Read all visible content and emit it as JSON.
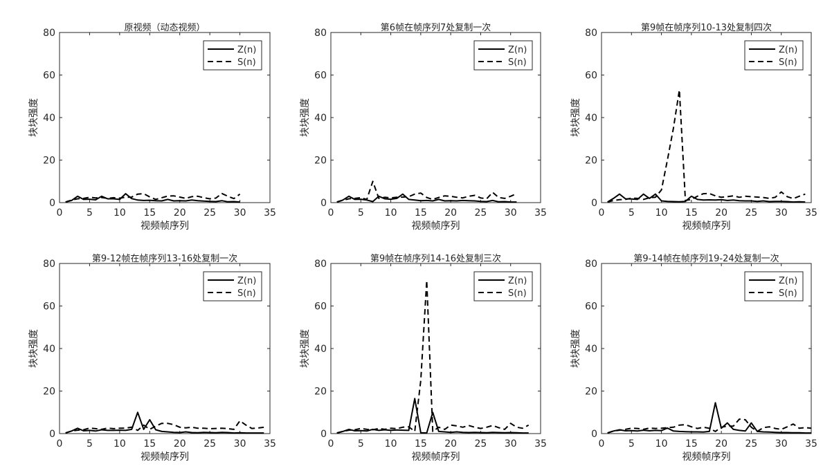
{
  "chart_data": [
    {
      "type": "line",
      "title": "原视频（动态视频）",
      "xlabel": "视频帧序列",
      "ylabel": "块块强度",
      "xlim": [
        0,
        35
      ],
      "ylim": [
        0,
        80
      ],
      "xticks": [
        0,
        5,
        10,
        15,
        20,
        25,
        30,
        35
      ],
      "yticks": [
        0,
        20,
        40,
        60,
        80
      ],
      "legend_position": "top-right",
      "series": [
        {
          "name": "Z(n)",
          "style": "solid",
          "x": [
            1,
            2,
            3,
            4,
            5,
            6,
            7,
            8,
            9,
            10,
            11,
            12,
            13,
            14,
            15,
            16,
            17,
            18,
            19,
            20,
            21,
            22,
            23,
            24,
            25,
            26,
            27,
            28,
            29,
            30
          ],
          "values": [
            0.3,
            1.0,
            3.0,
            1.5,
            1.6,
            1.3,
            3.0,
            1.8,
            1.8,
            1.5,
            4.2,
            1.9,
            1.2,
            1.0,
            1.1,
            0.9,
            0.8,
            1.5,
            0.8,
            0.9,
            0.8,
            1.2,
            0.9,
            0.7,
            0.6,
            0.5,
            0.9,
            0.4,
            0.5,
            0.3
          ]
        },
        {
          "name": "S(n)",
          "style": "dashed",
          "x": [
            1,
            2,
            3,
            4,
            5,
            6,
            7,
            8,
            9,
            10,
            11,
            12,
            13,
            14,
            15,
            16,
            17,
            18,
            19,
            20,
            21,
            22,
            23,
            24,
            25,
            26,
            27,
            28,
            29,
            30
          ],
          "values": [
            0.3,
            1.2,
            1.8,
            2.0,
            2.5,
            2.2,
            2.4,
            2.0,
            2.3,
            2.1,
            2.5,
            2.6,
            4.0,
            4.2,
            2.7,
            1.5,
            2.3,
            3.1,
            3.2,
            2.6,
            2.0,
            2.8,
            3.0,
            2.3,
            1.8,
            2.1,
            4.3,
            3.0,
            1.9,
            4.0
          ]
        }
      ]
    },
    {
      "type": "line",
      "title": "第6帧在帧序列7处复制一次",
      "xlabel": "视频帧序列",
      "ylabel": "块块强度",
      "xlim": [
        0,
        35
      ],
      "ylim": [
        0,
        80
      ],
      "xticks": [
        0,
        5,
        10,
        15,
        20,
        25,
        30,
        35
      ],
      "yticks": [
        0,
        20,
        40,
        60,
        80
      ],
      "legend_position": "top-right",
      "series": [
        {
          "name": "Z(n)",
          "style": "solid",
          "x": [
            1,
            2,
            3,
            4,
            5,
            6,
            7,
            8,
            9,
            10,
            11,
            12,
            13,
            14,
            15,
            16,
            17,
            18,
            19,
            20,
            21,
            22,
            23,
            24,
            25,
            26,
            27,
            28,
            29,
            30,
            31
          ],
          "values": [
            0.3,
            1.2,
            3.0,
            1.5,
            1.6,
            1.2,
            0.5,
            3.0,
            1.8,
            1.6,
            2.0,
            4.0,
            1.5,
            1.2,
            0.9,
            1.0,
            0.8,
            1.5,
            0.8,
            0.9,
            0.8,
            1.0,
            0.9,
            0.8,
            0.6,
            0.5,
            1.0,
            0.4,
            0.5,
            0.3,
            0.3
          ]
        },
        {
          "name": "S(n)",
          "style": "dashed",
          "x": [
            1,
            2,
            3,
            4,
            5,
            6,
            7,
            8,
            9,
            10,
            11,
            12,
            13,
            14,
            15,
            16,
            17,
            18,
            19,
            20,
            21,
            22,
            23,
            24,
            25,
            26,
            27,
            28,
            29,
            30,
            31
          ],
          "values": [
            0.3,
            1.1,
            1.8,
            2.0,
            2.3,
            1.5,
            10.0,
            2.0,
            2.5,
            2.2,
            2.5,
            2.6,
            2.8,
            4.0,
            4.5,
            2.4,
            1.5,
            2.4,
            3.2,
            3.0,
            2.5,
            2.2,
            3.0,
            3.4,
            2.2,
            1.8,
            4.8,
            2.4,
            2.0,
            3.0,
            4.2
          ]
        }
      ]
    },
    {
      "type": "line",
      "title": "第9帧在帧序列10-13处复制四次",
      "xlabel": "视频帧序列",
      "ylabel": "块块强度",
      "xlim": [
        0,
        35
      ],
      "ylim": [
        0,
        80
      ],
      "xticks": [
        0,
        5,
        10,
        15,
        20,
        25,
        30,
        35
      ],
      "yticks": [
        0,
        20,
        40,
        60,
        80
      ],
      "legend_position": "top-right",
      "series": [
        {
          "name": "Z(n)",
          "style": "solid",
          "x": [
            1,
            2,
            3,
            4,
            5,
            6,
            7,
            8,
            9,
            10,
            11,
            12,
            13,
            14,
            15,
            16,
            17,
            18,
            19,
            20,
            21,
            22,
            23,
            24,
            25,
            26,
            27,
            28,
            29,
            30,
            31,
            32,
            33,
            34
          ],
          "values": [
            0.3,
            2.0,
            4.0,
            1.8,
            1.7,
            1.5,
            4.0,
            2.0,
            4.0,
            0.8,
            0.6,
            0.5,
            0.4,
            0.6,
            3.0,
            1.5,
            1.2,
            1.3,
            1.2,
            1.4,
            1.0,
            1.2,
            0.9,
            0.8,
            0.8,
            0.6,
            0.8,
            0.5,
            0.6,
            0.6,
            0.5,
            0.3,
            0.4,
            0.3
          ]
        },
        {
          "name": "S(n)",
          "style": "dashed",
          "x": [
            1,
            2,
            3,
            4,
            5,
            6,
            7,
            8,
            9,
            10,
            11,
            12,
            13,
            14,
            15,
            16,
            17,
            18,
            19,
            20,
            21,
            22,
            23,
            24,
            25,
            26,
            27,
            28,
            29,
            30,
            31,
            32,
            33,
            34
          ],
          "values": [
            0.3,
            1.0,
            1.4,
            1.5,
            2.1,
            2.0,
            1.5,
            2.3,
            2.5,
            6.0,
            20.0,
            35.0,
            53.0,
            1.0,
            1.5,
            3.0,
            4.2,
            4.3,
            3.2,
            2.5,
            2.8,
            3.2,
            2.5,
            3.0,
            2.8,
            2.6,
            2.4,
            2.0,
            2.5,
            5.0,
            2.8,
            1.9,
            3.0,
            4.0
          ]
        }
      ]
    },
    {
      "type": "line",
      "title": "第9-12帧在帧序列13-16处复制一次",
      "xlabel": "视频帧序列",
      "ylabel": "块块强度",
      "xlim": [
        0,
        35
      ],
      "ylim": [
        0,
        80
      ],
      "xticks": [
        0,
        5,
        10,
        15,
        20,
        25,
        30,
        35
      ],
      "yticks": [
        0,
        20,
        40,
        60,
        80
      ],
      "legend_position": "top-right",
      "series": [
        {
          "name": "Z(n)",
          "style": "solid",
          "x": [
            1,
            2,
            3,
            4,
            5,
            6,
            7,
            8,
            9,
            10,
            11,
            12,
            13,
            14,
            15,
            16,
            17,
            18,
            19,
            20,
            21,
            22,
            23,
            24,
            25,
            26,
            27,
            28,
            29,
            30,
            31,
            32,
            33,
            34
          ],
          "values": [
            0.3,
            1.2,
            2.5,
            1.3,
            1.5,
            1.2,
            1.8,
            1.5,
            1.5,
            1.6,
            1.5,
            2.0,
            10.0,
            2.0,
            6.5,
            1.8,
            1.0,
            0.8,
            0.6,
            0.5,
            0.8,
            0.5,
            0.4,
            0.6,
            0.5,
            0.4,
            0.6,
            0.5,
            0.3,
            0.4,
            0.3,
            0.3,
            0.3,
            0.3
          ]
        },
        {
          "name": "S(n)",
          "style": "dashed",
          "x": [
            1,
            2,
            3,
            4,
            5,
            6,
            7,
            8,
            9,
            10,
            11,
            12,
            13,
            14,
            15,
            16,
            17,
            18,
            19,
            20,
            21,
            22,
            23,
            24,
            25,
            26,
            27,
            28,
            29,
            30,
            31,
            32,
            33,
            34
          ],
          "values": [
            0.3,
            1.2,
            1.6,
            1.8,
            2.6,
            2.3,
            2.0,
            2.6,
            2.3,
            2.5,
            2.6,
            3.0,
            1.5,
            4.0,
            2.0,
            3.5,
            4.8,
            4.8,
            4.2,
            3.0,
            2.7,
            3.0,
            2.5,
            2.5,
            2.3,
            2.4,
            2.5,
            2.3,
            2.0,
            6.0,
            4.0,
            2.4,
            2.6,
            3.0
          ]
        }
      ]
    },
    {
      "type": "line",
      "title": "第9帧在帧序列14-16处复制三次",
      "xlabel": "视频帧序列",
      "ylabel": "块块强度",
      "xlim": [
        0,
        35
      ],
      "ylim": [
        0,
        80
      ],
      "xticks": [
        0,
        5,
        10,
        15,
        20,
        25,
        30,
        35
      ],
      "yticks": [
        0,
        20,
        40,
        60,
        80
      ],
      "legend_position": "top-right",
      "series": [
        {
          "name": "Z(n)",
          "style": "solid",
          "x": [
            1,
            2,
            3,
            4,
            5,
            6,
            7,
            8,
            9,
            10,
            11,
            12,
            13,
            14,
            15,
            16,
            17,
            18,
            19,
            20,
            21,
            22,
            23,
            24,
            25,
            26,
            27,
            28,
            29,
            30,
            31,
            32,
            33
          ],
          "values": [
            0.3,
            1.0,
            2.0,
            1.3,
            1.4,
            1.2,
            2.0,
            1.5,
            1.8,
            1.5,
            1.7,
            1.6,
            1.5,
            16.5,
            0.4,
            0.3,
            10.0,
            1.0,
            0.8,
            0.6,
            0.8,
            0.6,
            0.5,
            0.6,
            0.5,
            0.4,
            0.6,
            0.5,
            0.4,
            0.5,
            0.4,
            0.3,
            0.3
          ]
        },
        {
          "name": "S(n)",
          "style": "dashed",
          "x": [
            1,
            2,
            3,
            4,
            5,
            6,
            7,
            8,
            9,
            10,
            11,
            12,
            13,
            14,
            15,
            16,
            17,
            18,
            19,
            20,
            21,
            22,
            23,
            24,
            25,
            26,
            27,
            28,
            29,
            30,
            31,
            32,
            33
          ],
          "values": [
            0.3,
            1.0,
            1.6,
            1.8,
            2.4,
            2.0,
            1.8,
            2.4,
            2.0,
            2.5,
            2.3,
            3.0,
            3.2,
            1.0,
            25.0,
            72.0,
            1.0,
            3.0,
            2.0,
            4.0,
            3.6,
            3.0,
            3.8,
            3.0,
            2.4,
            3.0,
            3.8,
            2.8,
            2.0,
            4.8,
            3.0,
            2.5,
            4.0
          ]
        }
      ]
    },
    {
      "type": "line",
      "title": "第9-14帧在帧序列19-24处复制一次",
      "xlabel": "视频帧序列",
      "ylabel": "块块强度",
      "xlim": [
        0,
        35
      ],
      "ylim": [
        0,
        80
      ],
      "xticks": [
        0,
        5,
        10,
        15,
        20,
        25,
        30,
        35
      ],
      "yticks": [
        0,
        20,
        40,
        60,
        80
      ],
      "legend_position": "top-right",
      "series": [
        {
          "name": "Z(n)",
          "style": "solid",
          "x": [
            1,
            2,
            3,
            4,
            5,
            6,
            7,
            8,
            9,
            10,
            11,
            12,
            13,
            14,
            15,
            16,
            17,
            18,
            19,
            20,
            21,
            22,
            23,
            24,
            25,
            26,
            27,
            28,
            29,
            30,
            31,
            32,
            33,
            34,
            35
          ],
          "values": [
            0.3,
            1.2,
            1.8,
            1.3,
            1.4,
            1.2,
            1.6,
            1.3,
            1.5,
            1.4,
            2.6,
            1.2,
            1.0,
            0.9,
            0.8,
            0.8,
            0.7,
            1.0,
            14.5,
            2.5,
            5.0,
            2.0,
            1.5,
            1.2,
            5.0,
            1.0,
            0.8,
            0.7,
            0.6,
            0.5,
            0.5,
            0.4,
            0.4,
            0.3,
            0.3
          ]
        },
        {
          "name": "S(n)",
          "style": "dashed",
          "x": [
            1,
            2,
            3,
            4,
            5,
            6,
            7,
            8,
            9,
            10,
            11,
            12,
            13,
            14,
            15,
            16,
            17,
            18,
            19,
            20,
            21,
            22,
            23,
            24,
            25,
            26,
            27,
            28,
            29,
            30,
            31,
            32,
            33,
            34,
            35
          ],
          "values": [
            0.3,
            1.2,
            1.6,
            2.0,
            2.5,
            2.4,
            2.0,
            2.6,
            2.4,
            2.5,
            2.8,
            3.0,
            4.0,
            4.2,
            3.2,
            2.4,
            3.0,
            2.5,
            1.0,
            3.0,
            3.5,
            3.5,
            6.8,
            6.5,
            3.0,
            1.0,
            2.8,
            3.2,
            2.4,
            2.0,
            3.2,
            4.5,
            2.5,
            2.8,
            2.5
          ]
        }
      ]
    }
  ]
}
